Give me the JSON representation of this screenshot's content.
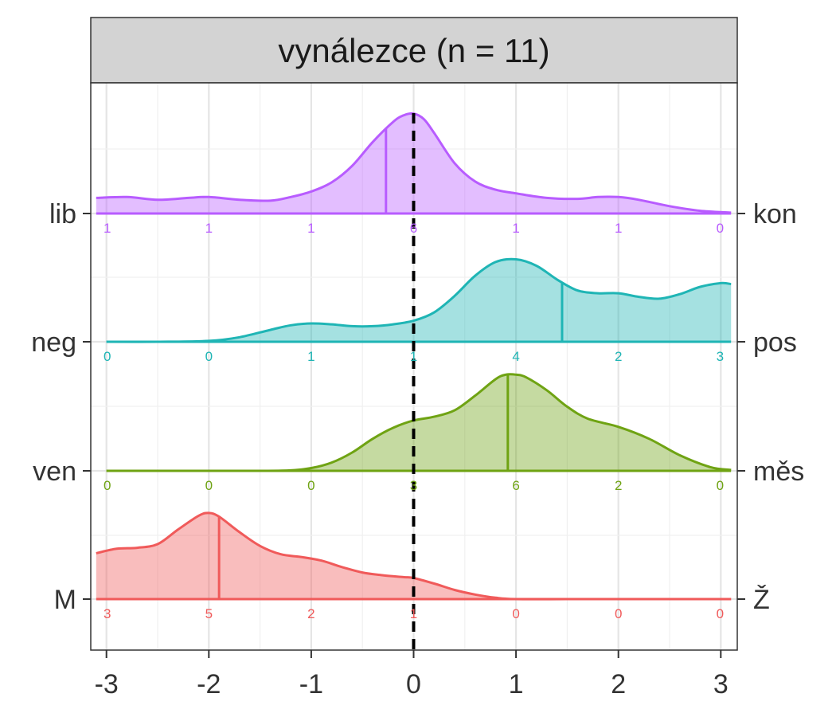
{
  "chart_data": {
    "type": "ridgeline",
    "title": "vynálezce (n = 11)",
    "xlim": [
      -3,
      3
    ],
    "x_ticks": [
      "-3",
      "-2",
      "-1",
      "0",
      "1",
      "2",
      "3"
    ],
    "reference_line": 0,
    "grid": true,
    "series": [
      {
        "left_label": "lib",
        "right_label": "kon",
        "color": "#b85cff",
        "mean": -0.27,
        "counts": [
          "1",
          "1",
          "1",
          "6",
          "1",
          "1",
          "0"
        ],
        "density_x": [
          -3.1,
          -2.8,
          -2.5,
          -2.2,
          -2.0,
          -1.7,
          -1.4,
          -1.2,
          -1.0,
          -0.8,
          -0.6,
          -0.4,
          -0.2,
          -0.1,
          0.0,
          0.1,
          0.2,
          0.4,
          0.6,
          0.8,
          1.0,
          1.3,
          1.6,
          1.8,
          2.0,
          2.2,
          2.5,
          2.8,
          3.1
        ],
        "density_y": [
          0.17,
          0.18,
          0.15,
          0.17,
          0.18,
          0.15,
          0.14,
          0.18,
          0.24,
          0.34,
          0.52,
          0.78,
          1.0,
          1.07,
          1.09,
          1.03,
          0.88,
          0.55,
          0.35,
          0.26,
          0.22,
          0.17,
          0.16,
          0.18,
          0.18,
          0.15,
          0.08,
          0.03,
          0.01
        ]
      },
      {
        "left_label": "neg",
        "right_label": "pos",
        "color": "#1fb5b5",
        "mean": 1.45,
        "counts": [
          "0",
          "0",
          "1",
          "1",
          "4",
          "2",
          "3"
        ],
        "density_x": [
          -3.0,
          -2.5,
          -2.0,
          -1.7,
          -1.4,
          -1.2,
          -1.0,
          -0.8,
          -0.6,
          -0.4,
          -0.2,
          0.0,
          0.2,
          0.4,
          0.6,
          0.8,
          1.0,
          1.2,
          1.4,
          1.6,
          1.8,
          2.0,
          2.2,
          2.4,
          2.6,
          2.8,
          3.0,
          3.1
        ],
        "density_y": [
          0.0,
          0.0,
          0.01,
          0.05,
          0.13,
          0.18,
          0.2,
          0.19,
          0.17,
          0.17,
          0.19,
          0.23,
          0.32,
          0.5,
          0.72,
          0.87,
          0.9,
          0.83,
          0.68,
          0.56,
          0.53,
          0.53,
          0.49,
          0.47,
          0.52,
          0.6,
          0.64,
          0.63
        ]
      },
      {
        "left_label": "ven",
        "right_label": "měs",
        "color": "#6fa313",
        "mean": 0.92,
        "counts": [
          "0",
          "0",
          "0",
          "3",
          "6",
          "2",
          "0"
        ],
        "density_x": [
          -3.0,
          -2.5,
          -2.0,
          -1.5,
          -1.2,
          -1.0,
          -0.8,
          -0.6,
          -0.4,
          -0.2,
          0.0,
          0.2,
          0.4,
          0.6,
          0.8,
          0.9,
          1.0,
          1.1,
          1.3,
          1.5,
          1.7,
          2.0,
          2.3,
          2.6,
          2.9,
          3.1
        ],
        "density_y": [
          0.0,
          0.0,
          0.0,
          0.0,
          0.005,
          0.03,
          0.09,
          0.2,
          0.35,
          0.47,
          0.55,
          0.59,
          0.66,
          0.82,
          1.0,
          1.05,
          1.05,
          1.02,
          0.88,
          0.7,
          0.57,
          0.48,
          0.35,
          0.17,
          0.04,
          0.01
        ]
      },
      {
        "left_label": "M",
        "right_label": "Ž",
        "color": "#f05a5a",
        "mean": -1.9,
        "counts": [
          "3",
          "5",
          "2",
          "1",
          "0",
          "0",
          "0"
        ],
        "density_x": [
          -3.1,
          -2.9,
          -2.7,
          -2.5,
          -2.3,
          -2.1,
          -2.0,
          -1.9,
          -1.7,
          -1.5,
          -1.3,
          -1.1,
          -0.9,
          -0.7,
          -0.5,
          -0.3,
          -0.1,
          0.0,
          0.2,
          0.4,
          0.6,
          0.8,
          1.0,
          1.5,
          2.0,
          2.5,
          3.1
        ],
        "density_y": [
          0.5,
          0.55,
          0.56,
          0.6,
          0.76,
          0.91,
          0.94,
          0.9,
          0.73,
          0.58,
          0.49,
          0.46,
          0.42,
          0.35,
          0.29,
          0.26,
          0.24,
          0.23,
          0.17,
          0.1,
          0.05,
          0.015,
          0.0,
          0.0,
          0.0,
          0.0,
          0.0
        ]
      }
    ]
  }
}
